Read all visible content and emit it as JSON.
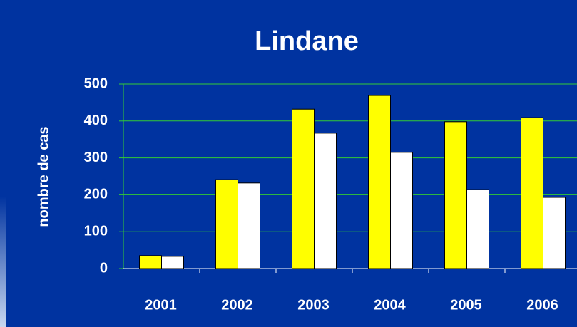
{
  "chart_data": {
    "type": "bar",
    "title": "Lindane",
    "y_label": "nombre de cas",
    "categories": [
      "2001",
      "2002",
      "2003",
      "2004",
      "2005",
      "2006"
    ],
    "series": [
      {
        "color": "#ffff00",
        "values": [
          35,
          241,
          432,
          469,
          398,
          409
        ]
      },
      {
        "color": "#ffffff",
        "values": [
          33,
          232,
          367,
          315,
          214,
          193
        ]
      }
    ],
    "ylim": [
      0,
      500
    ],
    "yticks": [
      0,
      100,
      200,
      300,
      400,
      500
    ],
    "grid": true,
    "grid_color": "#33cc33"
  }
}
